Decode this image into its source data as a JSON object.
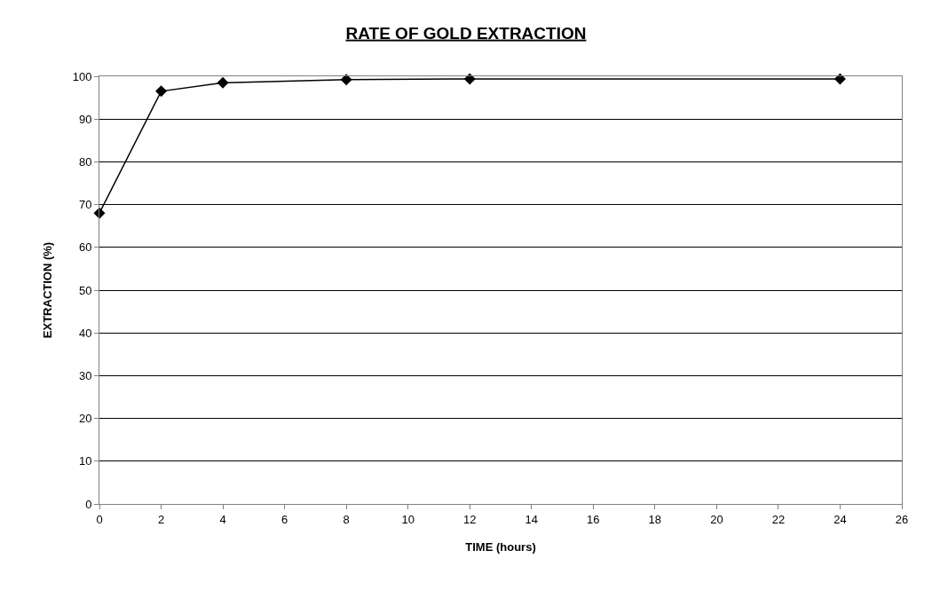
{
  "chart_data": {
    "type": "line",
    "title": "RATE OF GOLD EXTRACTION",
    "xlabel": "TIME (hours)",
    "ylabel": "EXTRACTION (%)",
    "x": [
      0,
      2,
      4,
      8,
      12,
      24
    ],
    "series": [
      {
        "color": "#000000",
        "values": [
          68,
          96.5,
          98.5,
          99.2,
          99.4,
          99.4
        ]
      }
    ],
    "xlim": [
      0,
      26
    ],
    "xticks": [
      0,
      2,
      4,
      6,
      8,
      10,
      12,
      14,
      16,
      18,
      20,
      22,
      24,
      26
    ],
    "ylim": [
      0,
      100
    ],
    "yticks": [
      0,
      10,
      20,
      30,
      40,
      50,
      60,
      70,
      80,
      90,
      100
    ],
    "grid": "y",
    "marker": "diamond",
    "line_style": "solid"
  }
}
